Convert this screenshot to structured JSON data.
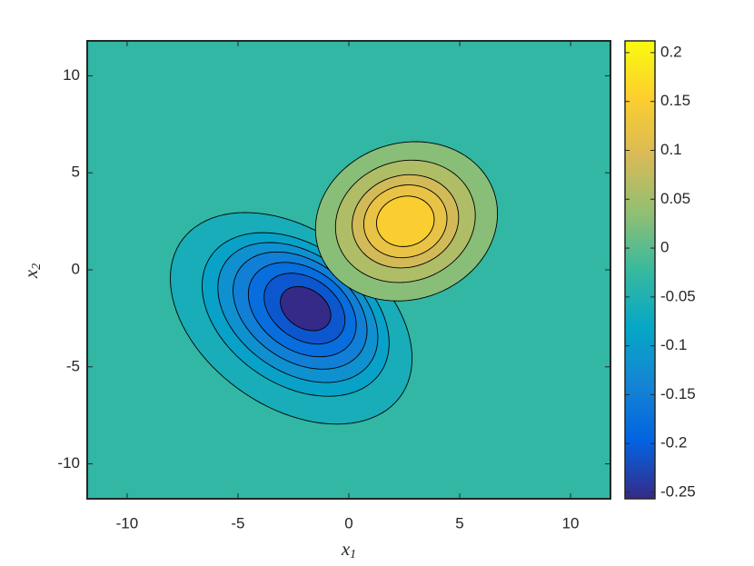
{
  "chart_data": {
    "type": "contour",
    "xlabel": {
      "text": "x",
      "subscript": "1"
    },
    "ylabel": {
      "text": "x",
      "subscript": "2"
    },
    "xlim": [
      -11.8,
      11.8
    ],
    "ylim": [
      -11.8,
      11.8
    ],
    "xticks": [
      -10,
      -5,
      0,
      5,
      10
    ],
    "yticks": [
      -10,
      -5,
      0,
      5,
      10
    ],
    "clim": [
      -0.2565,
      0.212
    ],
    "cticks": [
      -0.25,
      -0.2,
      -0.15,
      -0.1,
      -0.05,
      0,
      0.05,
      0.1,
      0.15,
      0.2
    ],
    "colormap": [
      "#352a87",
      "#0363e1",
      "#1485d4",
      "#06a7c6",
      "#38b99e",
      "#92bf73",
      "#d9ba56",
      "#fcce2e",
      "#f9fb0e"
    ],
    "contours": [
      {
        "level": -0.03,
        "x": -2.6,
        "y": -2.5,
        "a": 6.4,
        "b": 4.3,
        "angle": -45
      },
      {
        "level": -0.06,
        "x": -2.4,
        "y": -2.3,
        "a": 4.9,
        "b": 3.4,
        "angle": -45
      },
      {
        "level": -0.09,
        "x": -2.3,
        "y": -2.2,
        "a": 4.2,
        "b": 2.9,
        "angle": -45
      },
      {
        "level": -0.12,
        "x": -2.2,
        "y": -2.1,
        "a": 3.5,
        "b": 2.45,
        "angle": -45
      },
      {
        "level": -0.15,
        "x": -2.1,
        "y": -2.05,
        "a": 2.8,
        "b": 2.0,
        "angle": -45
      },
      {
        "level": -0.18,
        "x": -2.0,
        "y": -2.0,
        "a": 2.1,
        "b": 1.5,
        "angle": -45
      },
      {
        "level": -0.21,
        "x": -1.95,
        "y": -2.0,
        "a": 1.3,
        "b": 0.95,
        "angle": -45
      },
      {
        "level": 0.03,
        "x": 2.6,
        "y": 2.5,
        "a": 4.3,
        "b": 3.9,
        "angle": 45
      },
      {
        "level": 0.06,
        "x": 2.55,
        "y": 2.5,
        "a": 3.3,
        "b": 3.0,
        "angle": 45
      },
      {
        "level": 0.09,
        "x": 2.55,
        "y": 2.5,
        "a": 2.5,
        "b": 2.3,
        "angle": 45
      },
      {
        "level": 0.12,
        "x": 2.55,
        "y": 2.5,
        "a": 1.95,
        "b": 1.8,
        "angle": 45
      },
      {
        "level": 0.15,
        "x": 2.55,
        "y": 2.5,
        "a": 1.35,
        "b": 1.25,
        "angle": 45
      }
    ]
  }
}
